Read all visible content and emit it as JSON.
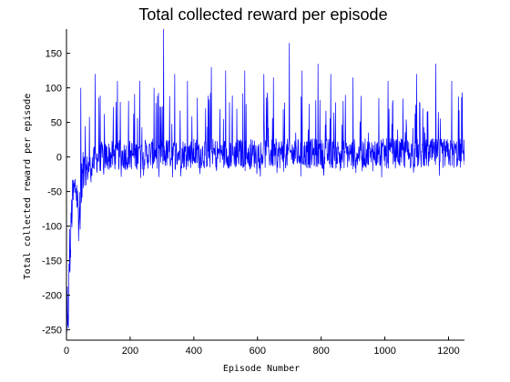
{
  "chart_data": {
    "type": "line",
    "title": "Total collected reward per episode",
    "xlabel": "Episode Number",
    "ylabel": "Total collected reward per episode",
    "xlim": [
      0,
      1250
    ],
    "ylim": [
      -265,
      185
    ],
    "xticks": [
      0,
      200,
      400,
      600,
      800,
      1000,
      1200
    ],
    "yticks": [
      150,
      100,
      50,
      0,
      -50,
      -100,
      -150,
      -200,
      -250
    ],
    "grid": false,
    "series": [
      {
        "color": "#0000ff",
        "num_points": 1250,
        "description_of_values": "noisy per-episode reward",
        "anchor_points": [
          {
            "x": 1,
            "y": -265
          },
          {
            "x": 3,
            "y": -200
          },
          {
            "x": 6,
            "y": -265
          },
          {
            "x": 8,
            "y": -160
          },
          {
            "x": 10,
            "y": -130
          },
          {
            "x": 12,
            "y": -150
          },
          {
            "x": 15,
            "y": -90
          },
          {
            "x": 20,
            "y": -60
          },
          {
            "x": 30,
            "y": -40
          },
          {
            "x": 40,
            "y": -100
          },
          {
            "x": 50,
            "y": -30
          },
          {
            "x": 60,
            "y": -20
          },
          {
            "x": 80,
            "y": -10
          },
          {
            "x": 100,
            "y": 0
          },
          {
            "x": 150,
            "y": 2
          },
          {
            "x": 200,
            "y": 3
          },
          {
            "x": 300,
            "y": 5
          },
          {
            "x": 400,
            "y": 5
          },
          {
            "x": 600,
            "y": 5
          },
          {
            "x": 800,
            "y": 5
          },
          {
            "x": 1000,
            "y": 5
          },
          {
            "x": 1250,
            "y": 5
          }
        ],
        "noted_spikes": [
          {
            "x": 45,
            "y": 100
          },
          {
            "x": 90,
            "y": 120
          },
          {
            "x": 160,
            "y": 110
          },
          {
            "x": 230,
            "y": 110
          },
          {
            "x": 275,
            "y": 100
          },
          {
            "x": 305,
            "y": 185
          },
          {
            "x": 340,
            "y": 120
          },
          {
            "x": 380,
            "y": 110
          },
          {
            "x": 455,
            "y": 130
          },
          {
            "x": 500,
            "y": 125
          },
          {
            "x": 560,
            "y": 125
          },
          {
            "x": 620,
            "y": 120
          },
          {
            "x": 650,
            "y": 115
          },
          {
            "x": 700,
            "y": 165
          },
          {
            "x": 740,
            "y": 125
          },
          {
            "x": 790,
            "y": 135
          },
          {
            "x": 830,
            "y": 120
          },
          {
            "x": 900,
            "y": 115
          },
          {
            "x": 1010,
            "y": 110
          },
          {
            "x": 1100,
            "y": 120
          },
          {
            "x": 1160,
            "y": 135
          },
          {
            "x": 1210,
            "y": 110
          }
        ]
      }
    ]
  }
}
